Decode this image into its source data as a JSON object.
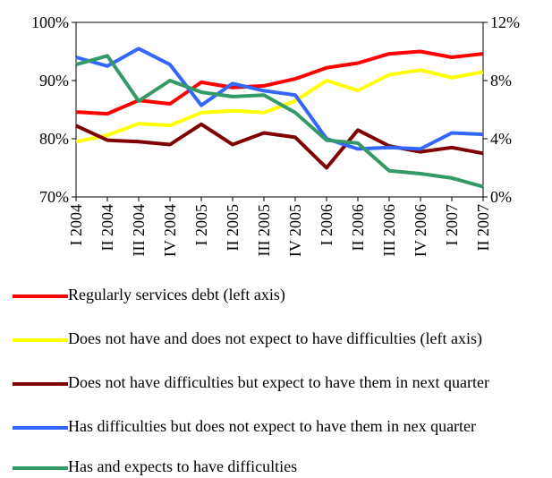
{
  "chart_data": {
    "type": "line",
    "categories": [
      "I 2004",
      "II 2004",
      "III 2004",
      "IV 2004",
      "I 2005",
      "II 2005",
      "III 2005",
      "IV 2005",
      "I 2006",
      "II 2006",
      "III 2006",
      "IV 2006",
      "I 2007",
      "II 2007"
    ],
    "ylim": [
      70,
      100
    ],
    "yticks": [
      {
        "value": 70,
        "label": "70%"
      },
      {
        "value": 80,
        "label": "80%"
      },
      {
        "value": 90,
        "label": "90%"
      },
      {
        "value": 100,
        "label": "100%"
      }
    ],
    "y2lim": [
      0,
      12
    ],
    "y2ticks": [
      {
        "value": 0,
        "label": "0%"
      },
      {
        "value": 4,
        "label": "4%"
      },
      {
        "value": 8,
        "label": "8%"
      },
      {
        "value": 12,
        "label": "12%"
      }
    ],
    "series": [
      {
        "name": "Regularly services debt (left axis)",
        "color": "#ff0000",
        "axis": "y",
        "values": [
          84.6,
          84.3,
          86.6,
          86,
          89.7,
          88.8,
          89.1,
          90.3,
          92.2,
          93,
          94.6,
          95,
          94,
          94.6
        ]
      },
      {
        "name": "Does not have and does not expect to have difficulties (left axis)",
        "color": "#ffff00",
        "axis": "y",
        "values": [
          79.5,
          80.6,
          82.6,
          82.3,
          84.5,
          84.8,
          84.5,
          86.5,
          90,
          88.3,
          91,
          91.8,
          90.5,
          91.5
        ]
      },
      {
        "name": "Does not have difficulties but expect to have them in next quarter",
        "color": "#800000",
        "axis": "y2",
        "values": [
          4.9,
          3.9,
          3.8,
          3.6,
          5.0,
          3.6,
          4.4,
          4.1,
          2.0,
          4.6,
          3.5,
          3.1,
          3.4,
          3.0
        ]
      },
      {
        "name": "Has difficulties but does not expect to have them in nex quarter",
        "color": "#3366ff",
        "axis": "y2",
        "values": [
          9.6,
          9.0,
          10.2,
          9.1,
          6.3,
          7.8,
          7.3,
          7.0,
          4.0,
          3.3,
          3.4,
          3.3,
          4.4,
          4.3
        ]
      },
      {
        "name": "Has and expects to have difficulties",
        "color": "#339966",
        "axis": "y2",
        "values": [
          9.1,
          9.7,
          6.6,
          8.0,
          7.2,
          6.9,
          7.0,
          5.8,
          3.9,
          3.7,
          1.8,
          1.6,
          1.3,
          0.7
        ]
      }
    ]
  }
}
